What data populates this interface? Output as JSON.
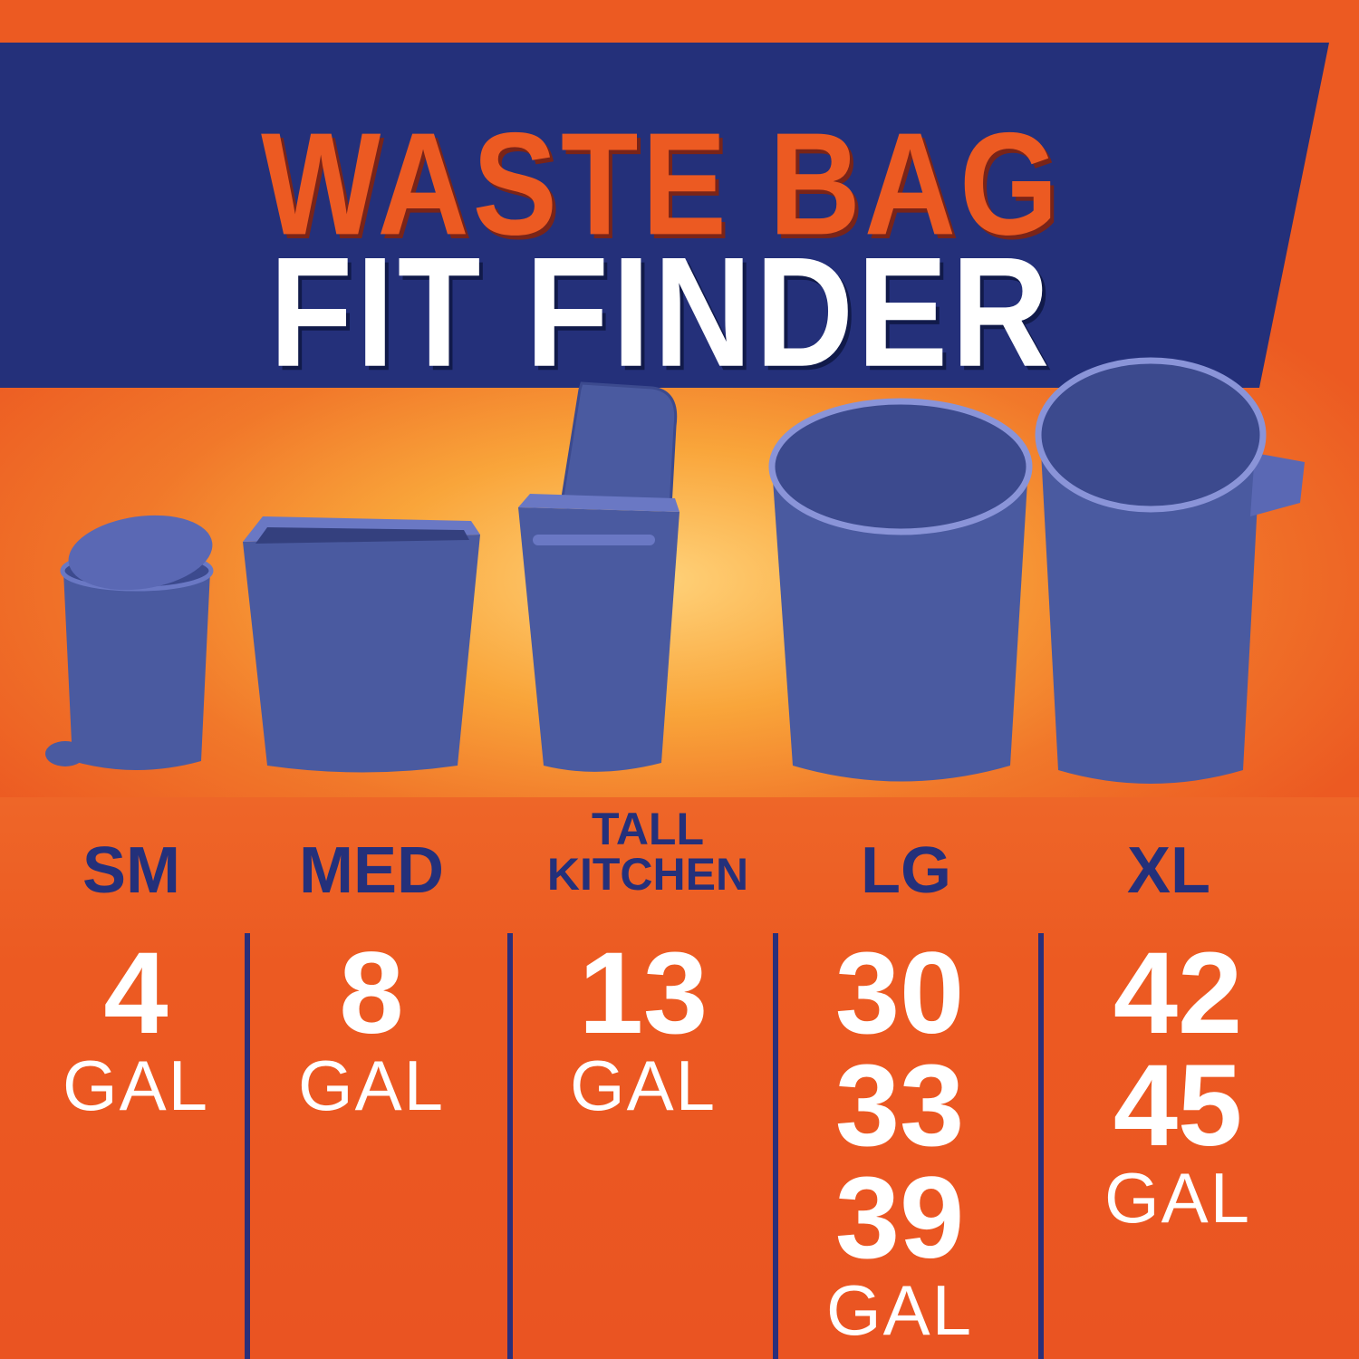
{
  "title": {
    "line1": "WASTE BAG",
    "line2": "FIT FINDER"
  },
  "colors": {
    "navy": "#24307a",
    "orange": "#ec5a22",
    "can": "#4a5aa0",
    "can_rim": "#8a94d8"
  },
  "sizes": [
    {
      "label": "SM",
      "icon": "step-trash-can-icon",
      "capacities": [
        "4"
      ],
      "unit": "GAL"
    },
    {
      "label": "MED",
      "icon": "wastebasket-icon",
      "capacities": [
        "8"
      ],
      "unit": "GAL"
    },
    {
      "label_line1": "TALL",
      "label_line2": "KITCHEN",
      "icon": "lidded-kitchen-can-icon",
      "capacities": [
        "13"
      ],
      "unit": "GAL"
    },
    {
      "label": "LG",
      "icon": "round-trash-can-icon",
      "capacities": [
        "30",
        "33",
        "39"
      ],
      "unit": "GAL"
    },
    {
      "label": "XL",
      "icon": "large-round-trash-can-icon",
      "capacities": [
        "42",
        "45"
      ],
      "unit": "GAL"
    }
  ]
}
